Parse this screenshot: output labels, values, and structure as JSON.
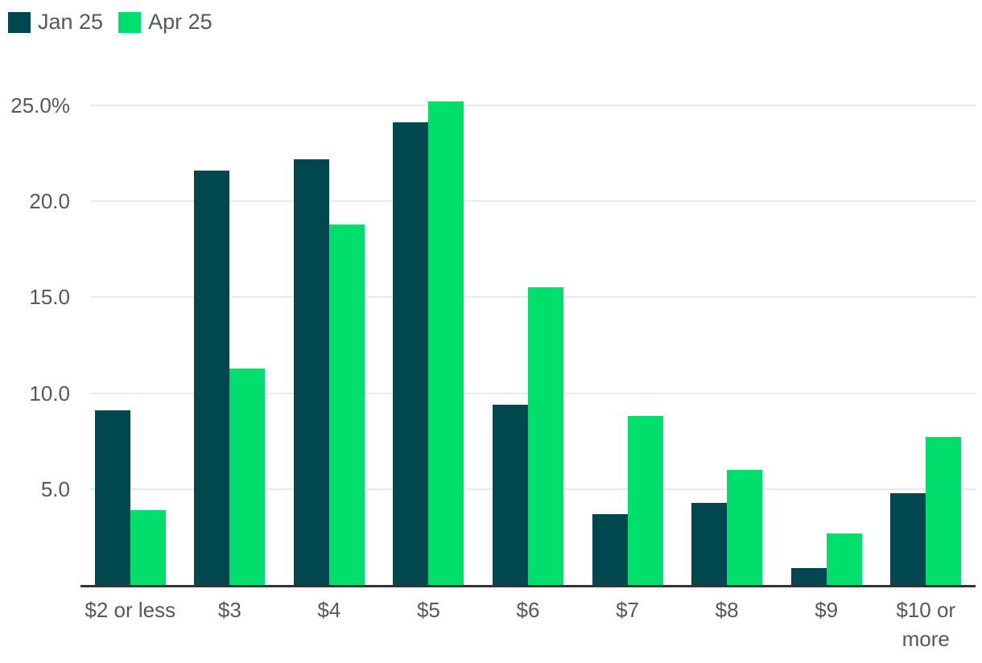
{
  "chart_data": {
    "type": "bar",
    "title": "",
    "xlabel": "",
    "ylabel": "",
    "categories": [
      "$2 or less",
      "$3",
      "$4",
      "$5",
      "$6",
      "$7",
      "$8",
      "$9",
      "$10 or more"
    ],
    "series": [
      {
        "name": "Jan 25",
        "color": "#004750",
        "values": [
          9.1,
          21.6,
          22.2,
          24.1,
          9.4,
          3.7,
          4.3,
          0.9,
          4.8
        ]
      },
      {
        "name": "Apr 25",
        "color": "#00df6c",
        "values": [
          3.9,
          11.3,
          18.8,
          25.2,
          15.5,
          8.8,
          6.0,
          2.7,
          7.7
        ]
      }
    ],
    "yticks": [
      {
        "value": 5,
        "label": "5.0"
      },
      {
        "value": 10,
        "label": "10.0"
      },
      {
        "value": 15,
        "label": "15.0"
      },
      {
        "value": 20,
        "label": "20.0"
      },
      {
        "value": 25,
        "label": "25.0%"
      }
    ],
    "ylim": [
      0,
      26.2
    ],
    "grid": "horizontal",
    "legend_position": "top-left",
    "colors": {
      "grid": "#e9e9e9",
      "axis": "#343434",
      "text": "#55585e",
      "background": "#ffffff"
    }
  }
}
